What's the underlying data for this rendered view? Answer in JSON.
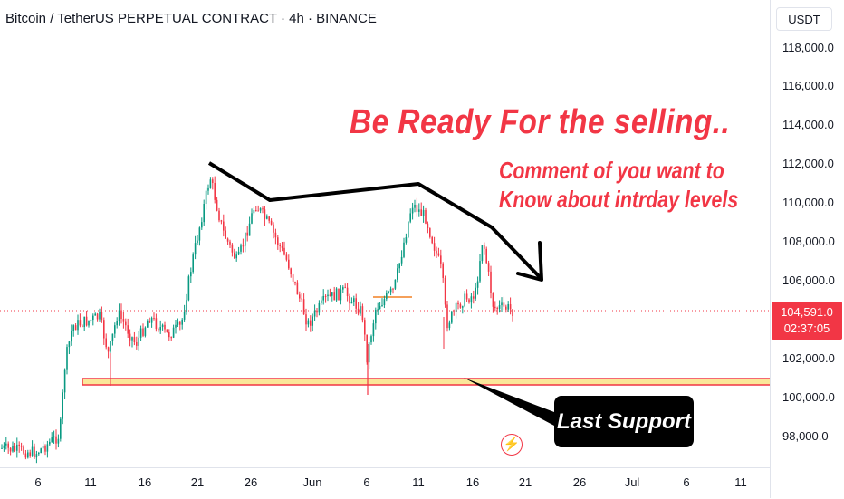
{
  "header": {
    "title": "Bitcoin / TetherUS PERPETUAL CONTRACT · 4h · BINANCE"
  },
  "price_axis": {
    "currency": "USDT",
    "ticks": [
      "118,000.0",
      "116,000.0",
      "114,000.0",
      "112,000.0",
      "110,000.0",
      "108,000.0",
      "106,000.0",
      "102,000.0",
      "100,000.0",
      "98,000.0"
    ],
    "last_price": "104,591.0",
    "countdown": "02:37:05",
    "last_price_color": "#f23645"
  },
  "time_axis": {
    "labels": [
      "6",
      "11",
      "16",
      "21",
      "26",
      "Jun",
      "6",
      "11",
      "16",
      "21",
      "26",
      "Jul",
      "6",
      "11"
    ]
  },
  "annotations": {
    "headline": "Be Ready For the selling..",
    "comment": [
      "Comment of you want to",
      "Know about intrday levels"
    ],
    "callout": "Last Support",
    "text_color": "#f23645",
    "support_fill": "#fbe79a",
    "support_border": "#f23645"
  },
  "icons": {
    "flash": "lightning-icon"
  },
  "colors": {
    "up": "#089981",
    "down": "#f23645"
  }
}
